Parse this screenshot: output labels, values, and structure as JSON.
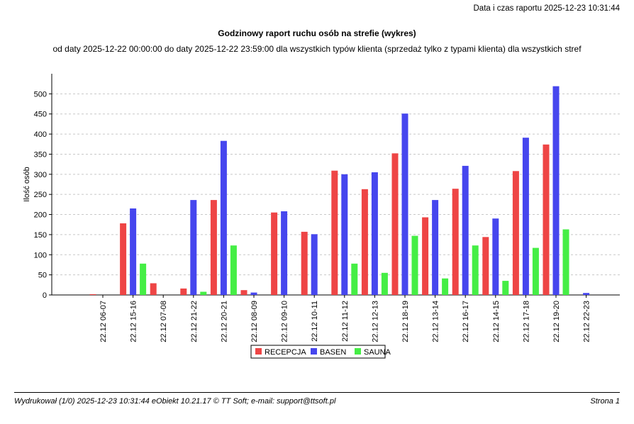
{
  "header": {
    "report_date": "Data i czas raportu 2025-12-23 10:31:44",
    "title": "Godzinowy raport ruchu osób na strefie (wykres)",
    "subtitle": "od daty 2025-12-22 00:00:00 do daty 2025-12-22 23:59:00 dla wszystkich typów klienta (sprzedaż tylko z typami klienta)  dla wszystkich stref"
  },
  "chart_data": {
    "type": "bar",
    "title": "Godzinowy raport ruchu osób na strefie (wykres)",
    "xlabel": "",
    "ylabel": "Ilość osób",
    "ylim": [
      0,
      550
    ],
    "yticks": [
      0,
      50,
      100,
      150,
      200,
      250,
      300,
      350,
      400,
      450,
      500
    ],
    "grid": true,
    "legend_position": "bottom",
    "categories": [
      "22.12 06-07",
      "22.12 15-16",
      "22.12 07-08",
      "22.12 21-22",
      "22.12 20-21",
      "22.12 08-09",
      "22.12 09-10",
      "22.12 10-11",
      "22.12 11-12",
      "22.12 12-13",
      "22.12 18-19",
      "22.12 13-14",
      "22.12 16-17",
      "22.12 14-15",
      "22.12 17-18",
      "22.12 19-20",
      "22.12 22-23"
    ],
    "series": [
      {
        "name": "RECEPCJA",
        "color": "#ee4545",
        "values": [
          2,
          178,
          29,
          16,
          236,
          12,
          205,
          157,
          309,
          263,
          352,
          193,
          264,
          144,
          308,
          374,
          0
        ]
      },
      {
        "name": "BASEN",
        "color": "#4646ee",
        "values": [
          0,
          215,
          0,
          236,
          383,
          6,
          208,
          151,
          300,
          305,
          451,
          236,
          321,
          190,
          391,
          519,
          5
        ]
      },
      {
        "name": "SAUNA",
        "color": "#45ee45",
        "values": [
          0,
          78,
          0,
          8,
          123,
          0,
          0,
          0,
          78,
          55,
          147,
          41,
          123,
          35,
          117,
          163,
          0
        ]
      }
    ]
  },
  "footer": {
    "left": "Wydrukował (1/0) 2025-12-23 10:31:44 eObiekt 10.21.17 © TT Soft; e-mail: support@ttsoft.pl",
    "right": "Strona 1"
  }
}
